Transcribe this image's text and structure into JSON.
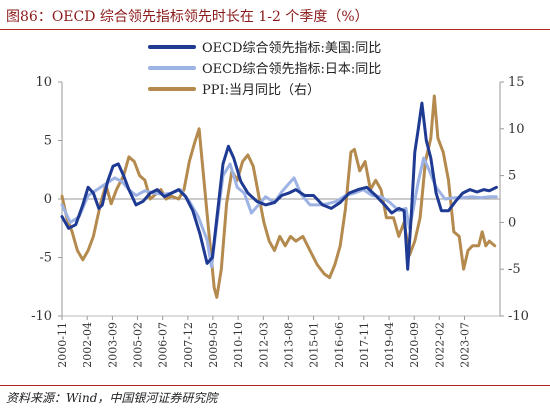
{
  "title": "图86：OECD 综合领先指标领先时长在 1-2 个季度（%）",
  "source": "资料来源：Wind，中国银河证券研究院",
  "chart_data": {
    "type": "line",
    "y_left": {
      "min": -10,
      "max": 10,
      "ticks": [
        -10,
        -5,
        0,
        5,
        10
      ],
      "tick_labels": [
        "-10",
        "-5",
        "0",
        "5",
        "10"
      ]
    },
    "y_right": {
      "min": -10,
      "max": 15,
      "ticks": [
        -10,
        -5,
        0,
        5,
        10,
        15
      ],
      "tick_labels": [
        "-10",
        "-5",
        "0",
        "5",
        "10",
        "15"
      ]
    },
    "x_range": [
      2000.83,
      2025.5
    ],
    "x_tick_labels": [
      "2000-11",
      "2002-04",
      "2003-09",
      "2005-02",
      "2006-07",
      "2007-12",
      "2009-05",
      "2010-10",
      "2012-03",
      "2013-08",
      "2015-01",
      "2016-06",
      "2017-11",
      "2019-04",
      "2020-09",
      "2022-02",
      "2023-07"
    ],
    "x_tick_values": [
      2000.83,
      2002.25,
      2003.67,
      2005.08,
      2006.5,
      2007.92,
      2009.33,
      2010.75,
      2012.17,
      2013.58,
      2015.0,
      2016.42,
      2017.83,
      2019.25,
      2020.67,
      2022.08,
      2023.5
    ],
    "legend_position": "top",
    "series": [
      {
        "name": "OECD综合领先指标:美国:同比",
        "axis": "left",
        "color": "#1f3a93",
        "width": 3,
        "points": [
          [
            2000.83,
            -1.5
          ],
          [
            2001.2,
            -2.5
          ],
          [
            2001.6,
            -2.2
          ],
          [
            2002.0,
            -0.5
          ],
          [
            2002.3,
            1.0
          ],
          [
            2002.6,
            0.5
          ],
          [
            2002.9,
            -0.8
          ],
          [
            2003.1,
            -0.5
          ],
          [
            2003.4,
            1.5
          ],
          [
            2003.7,
            2.8
          ],
          [
            2004.0,
            3.0
          ],
          [
            2004.3,
            2.0
          ],
          [
            2004.6,
            0.8
          ],
          [
            2005.0,
            -0.5
          ],
          [
            2005.4,
            -0.2
          ],
          [
            2005.8,
            0.5
          ],
          [
            2006.2,
            0.8
          ],
          [
            2006.6,
            0.2
          ],
          [
            2007.0,
            0.5
          ],
          [
            2007.4,
            0.8
          ],
          [
            2007.8,
            0.2
          ],
          [
            2008.2,
            -1.0
          ],
          [
            2008.6,
            -3.0
          ],
          [
            2009.0,
            -5.5
          ],
          [
            2009.3,
            -5.0
          ],
          [
            2009.6,
            -1.0
          ],
          [
            2009.9,
            3.0
          ],
          [
            2010.2,
            4.5
          ],
          [
            2010.5,
            3.5
          ],
          [
            2010.9,
            1.5
          ],
          [
            2011.3,
            0.5
          ],
          [
            2011.8,
            -0.2
          ],
          [
            2012.3,
            -0.5
          ],
          [
            2012.8,
            -0.3
          ],
          [
            2013.2,
            0.3
          ],
          [
            2013.6,
            0.5
          ],
          [
            2014.0,
            0.8
          ],
          [
            2014.5,
            0.3
          ],
          [
            2015.0,
            0.3
          ],
          [
            2015.5,
            -0.5
          ],
          [
            2016.0,
            -0.8
          ],
          [
            2016.5,
            -0.3
          ],
          [
            2017.0,
            0.5
          ],
          [
            2017.5,
            0.8
          ],
          [
            2018.0,
            1.0
          ],
          [
            2018.5,
            0.3
          ],
          [
            2019.0,
            -0.5
          ],
          [
            2019.4,
            -1.2
          ],
          [
            2019.8,
            -0.8
          ],
          [
            2020.1,
            -1.0
          ],
          [
            2020.3,
            -6.0
          ],
          [
            2020.5,
            -1.5
          ],
          [
            2020.7,
            4.0
          ],
          [
            2020.9,
            6.0
          ],
          [
            2021.1,
            8.2
          ],
          [
            2021.35,
            5.0
          ],
          [
            2021.6,
            3.5
          ],
          [
            2021.9,
            0.5
          ],
          [
            2022.2,
            -1.0
          ],
          [
            2022.6,
            -1.0
          ],
          [
            2023.0,
            -0.2
          ],
          [
            2023.4,
            0.5
          ],
          [
            2023.8,
            0.8
          ],
          [
            2024.2,
            0.6
          ],
          [
            2024.6,
            0.8
          ],
          [
            2024.9,
            0.7
          ],
          [
            2025.3,
            1.0
          ]
        ]
      },
      {
        "name": "OECD综合领先指标:日本:同比",
        "axis": "left",
        "color": "#9db3e4",
        "width": 3,
        "points": [
          [
            2000.83,
            -0.5
          ],
          [
            2001.3,
            -2.0
          ],
          [
            2001.8,
            -1.5
          ],
          [
            2002.3,
            0.3
          ],
          [
            2002.8,
            0.8
          ],
          [
            2003.3,
            1.3
          ],
          [
            2003.8,
            1.8
          ],
          [
            2004.2,
            1.5
          ],
          [
            2004.6,
            0.8
          ],
          [
            2005.0,
            0.3
          ],
          [
            2005.5,
            0.7
          ],
          [
            2006.0,
            0.5
          ],
          [
            2006.5,
            0.4
          ],
          [
            2007.0,
            0.5
          ],
          [
            2007.5,
            0.8
          ],
          [
            2008.0,
            -0.2
          ],
          [
            2008.5,
            -1.5
          ],
          [
            2009.0,
            -3.5
          ],
          [
            2009.25,
            -5.8
          ],
          [
            2009.6,
            -1.5
          ],
          [
            2009.9,
            2.0
          ],
          [
            2010.3,
            3.0
          ],
          [
            2010.7,
            1.0
          ],
          [
            2011.1,
            0.5
          ],
          [
            2011.5,
            -1.2
          ],
          [
            2011.9,
            -0.5
          ],
          [
            2012.3,
            0.2
          ],
          [
            2012.8,
            -0.3
          ],
          [
            2013.2,
            0.6
          ],
          [
            2013.6,
            1.3
          ],
          [
            2013.9,
            1.8
          ],
          [
            2014.3,
            0.4
          ],
          [
            2014.8,
            -0.5
          ],
          [
            2015.3,
            -0.5
          ],
          [
            2015.8,
            -0.4
          ],
          [
            2016.3,
            -0.2
          ],
          [
            2016.8,
            0.3
          ],
          [
            2017.3,
            0.5
          ],
          [
            2017.8,
            0.8
          ],
          [
            2018.3,
            0.3
          ],
          [
            2018.8,
            0.2
          ],
          [
            2019.3,
            -0.3
          ],
          [
            2019.8,
            -1.0
          ],
          [
            2020.2,
            -0.8
          ],
          [
            2020.4,
            -2.5
          ],
          [
            2020.6,
            -1.0
          ],
          [
            2020.9,
            1.5
          ],
          [
            2021.2,
            3.5
          ],
          [
            2021.5,
            2.5
          ],
          [
            2021.9,
            1.0
          ],
          [
            2022.4,
            0.0
          ],
          [
            2022.9,
            0.1
          ],
          [
            2023.4,
            0.1
          ],
          [
            2023.9,
            0.2
          ],
          [
            2024.4,
            0.1
          ],
          [
            2024.9,
            0.2
          ],
          [
            2025.3,
            0.2
          ]
        ]
      },
      {
        "name": "PPI:当月同比（右）",
        "axis": "right",
        "color": "#b48a4e",
        "width": 3,
        "points": [
          [
            2000.83,
            2.8
          ],
          [
            2001.1,
            0.5
          ],
          [
            2001.4,
            -1.0
          ],
          [
            2001.7,
            -3.0
          ],
          [
            2002.0,
            -4.0
          ],
          [
            2002.3,
            -3.0
          ],
          [
            2002.6,
            -1.5
          ],
          [
            2003.0,
            2.0
          ],
          [
            2003.3,
            4.0
          ],
          [
            2003.6,
            2.0
          ],
          [
            2003.9,
            3.5
          ],
          [
            2004.3,
            5.0
          ],
          [
            2004.6,
            7.0
          ],
          [
            2004.9,
            6.5
          ],
          [
            2005.2,
            5.0
          ],
          [
            2005.5,
            4.5
          ],
          [
            2005.8,
            2.5
          ],
          [
            2006.1,
            3.0
          ],
          [
            2006.4,
            3.5
          ],
          [
            2006.7,
            2.5
          ],
          [
            2007.0,
            2.8
          ],
          [
            2007.4,
            2.5
          ],
          [
            2007.7,
            3.5
          ],
          [
            2008.0,
            6.5
          ],
          [
            2008.3,
            8.5
          ],
          [
            2008.55,
            10.0
          ],
          [
            2008.8,
            5.0
          ],
          [
            2009.1,
            -1.0
          ],
          [
            2009.4,
            -7.0
          ],
          [
            2009.55,
            -8.0
          ],
          [
            2009.8,
            -5.0
          ],
          [
            2010.1,
            2.0
          ],
          [
            2010.4,
            5.5
          ],
          [
            2010.7,
            4.5
          ],
          [
            2011.0,
            6.5
          ],
          [
            2011.3,
            7.2
          ],
          [
            2011.6,
            6.0
          ],
          [
            2011.9,
            3.0
          ],
          [
            2012.2,
            0.0
          ],
          [
            2012.5,
            -2.0
          ],
          [
            2012.8,
            -3.0
          ],
          [
            2013.1,
            -1.5
          ],
          [
            2013.4,
            -2.5
          ],
          [
            2013.7,
            -1.5
          ],
          [
            2014.0,
            -2.0
          ],
          [
            2014.4,
            -1.5
          ],
          [
            2014.8,
            -3.0
          ],
          [
            2015.2,
            -4.5
          ],
          [
            2015.6,
            -5.5
          ],
          [
            2015.9,
            -5.9
          ],
          [
            2016.2,
            -4.5
          ],
          [
            2016.5,
            -2.5
          ],
          [
            2016.8,
            1.5
          ],
          [
            2017.1,
            7.5
          ],
          [
            2017.3,
            7.8
          ],
          [
            2017.6,
            5.5
          ],
          [
            2017.9,
            6.5
          ],
          [
            2018.2,
            3.5
          ],
          [
            2018.5,
            4.5
          ],
          [
            2018.8,
            3.5
          ],
          [
            2019.1,
            0.5
          ],
          [
            2019.5,
            0.5
          ],
          [
            2019.8,
            -1.5
          ],
          [
            2020.1,
            0.0
          ],
          [
            2020.4,
            -3.5
          ],
          [
            2020.7,
            -2.0
          ],
          [
            2021.0,
            0.5
          ],
          [
            2021.3,
            6.5
          ],
          [
            2021.6,
            9.0
          ],
          [
            2021.8,
            13.5
          ],
          [
            2022.0,
            9.0
          ],
          [
            2022.3,
            7.5
          ],
          [
            2022.6,
            4.5
          ],
          [
            2022.9,
            -1.0
          ],
          [
            2023.2,
            -1.5
          ],
          [
            2023.45,
            -5.0
          ],
          [
            2023.7,
            -3.0
          ],
          [
            2023.95,
            -2.5
          ],
          [
            2024.3,
            -2.5
          ],
          [
            2024.5,
            -1.0
          ],
          [
            2024.7,
            -2.5
          ],
          [
            2024.9,
            -2.0
          ],
          [
            2025.2,
            -2.5
          ]
        ]
      }
    ]
  }
}
